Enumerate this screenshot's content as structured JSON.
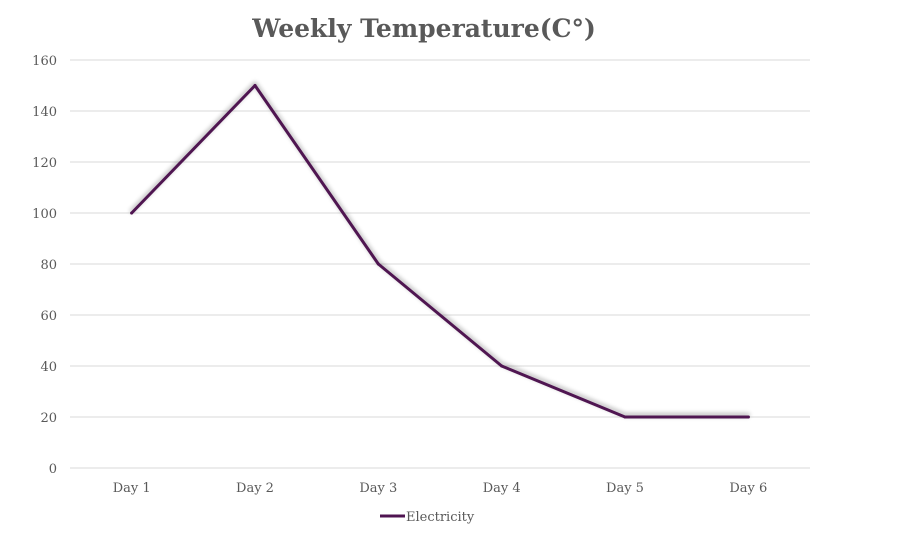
{
  "chart_data": {
    "type": "line",
    "title": "Weekly Temperature(C°)",
    "categories": [
      "Day 1",
      "Day 2",
      "Day 3",
      "Day 4",
      "Day 5",
      "Day 6"
    ],
    "series": [
      {
        "name": "Electricity",
        "values": [
          100,
          150,
          80,
          40,
          20,
          20
        ],
        "color": "#4f1451"
      }
    ],
    "ylim": [
      0,
      160
    ],
    "yticks": [
      0,
      20,
      40,
      60,
      80,
      100,
      120,
      140,
      160
    ],
    "xlabel": "",
    "ylabel": "",
    "grid": true,
    "legend": "bottom"
  }
}
